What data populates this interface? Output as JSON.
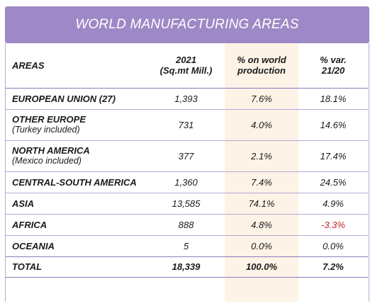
{
  "title": "WORLD MANUFACTURING AREAS",
  "headers": {
    "areas": "AREAS",
    "year_line1": "2021",
    "year_line2": "(Sq.mt Mill.)",
    "share_line1": "% on world",
    "share_line2": "production",
    "var_line1": "% var.",
    "var_line2": "21/20"
  },
  "colors": {
    "title_bg": "#9e88c6",
    "highlight_col": "#fdf3e6",
    "negative": "#c0282d"
  },
  "rows": [
    {
      "area": "EUROPEAN UNION (27)",
      "sub": "",
      "production": "1,393",
      "share": "7.6%",
      "variation": "18.1%"
    },
    {
      "area": "OTHER EUROPE",
      "sub": "(Turkey included)",
      "production": "731",
      "share": "4.0%",
      "variation": "14.6%"
    },
    {
      "area": "NORTH AMERICA",
      "sub": "(Mexico included)",
      "production": "377",
      "share": "2.1%",
      "variation": "17.4%"
    },
    {
      "area": "CENTRAL-SOUTH AMERICA",
      "sub": "",
      "production": "1,360",
      "share": "7.4%",
      "variation": "24.5%"
    },
    {
      "area": "ASIA",
      "sub": "",
      "production": "13,585",
      "share": "74.1%",
      "variation": "4.9%"
    },
    {
      "area": "AFRICA",
      "sub": "",
      "production": "888",
      "share": "4.8%",
      "variation": "-3.3%"
    },
    {
      "area": "OCEANIA",
      "sub": "",
      "production": "5",
      "share": "0.0%",
      "variation": "0.0%"
    }
  ],
  "total": {
    "label": "TOTAL",
    "production": "18,339",
    "share": "100.0%",
    "variation": "7.2%"
  }
}
